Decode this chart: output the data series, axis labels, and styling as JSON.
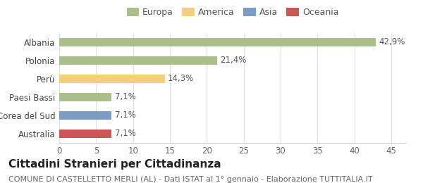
{
  "categories": [
    "Australia",
    "Corea del Sud",
    "Paesi Bassi",
    "Perù",
    "Polonia",
    "Albania"
  ],
  "values": [
    7.1,
    7.1,
    7.1,
    14.3,
    21.4,
    42.9
  ],
  "percentages": [
    "7,1%",
    "7,1%",
    "7,1%",
    "14,3%",
    "21,4%",
    "42,9%"
  ],
  "bar_colors": [
    "#cc5555",
    "#7b9dc4",
    "#aabf8a",
    "#f5d07a",
    "#aabf8a",
    "#aabf8a"
  ],
  "legend": [
    {
      "label": "Europa",
      "color": "#aabf8a"
    },
    {
      "label": "America",
      "color": "#f5d07a"
    },
    {
      "label": "Asia",
      "color": "#7b9dc4"
    },
    {
      "label": "Oceania",
      "color": "#cc5555"
    }
  ],
  "xlim": [
    0,
    47
  ],
  "xticks": [
    0,
    5,
    10,
    15,
    20,
    25,
    30,
    35,
    40,
    45
  ],
  "title": "Cittadini Stranieri per Cittadinanza",
  "subtitle": "COMUNE DI CASTELLETTO MERLI (AL) - Dati ISTAT al 1° gennaio - Elaborazione TUTTITALIA.IT",
  "background_color": "#ffffff",
  "grid_color": "#e0e0e0",
  "bar_height": 0.45,
  "label_fontsize": 8.5,
  "ytick_fontsize": 8.5,
  "xtick_fontsize": 8.5,
  "title_fontsize": 11,
  "subtitle_fontsize": 8.0,
  "legend_fontsize": 9
}
